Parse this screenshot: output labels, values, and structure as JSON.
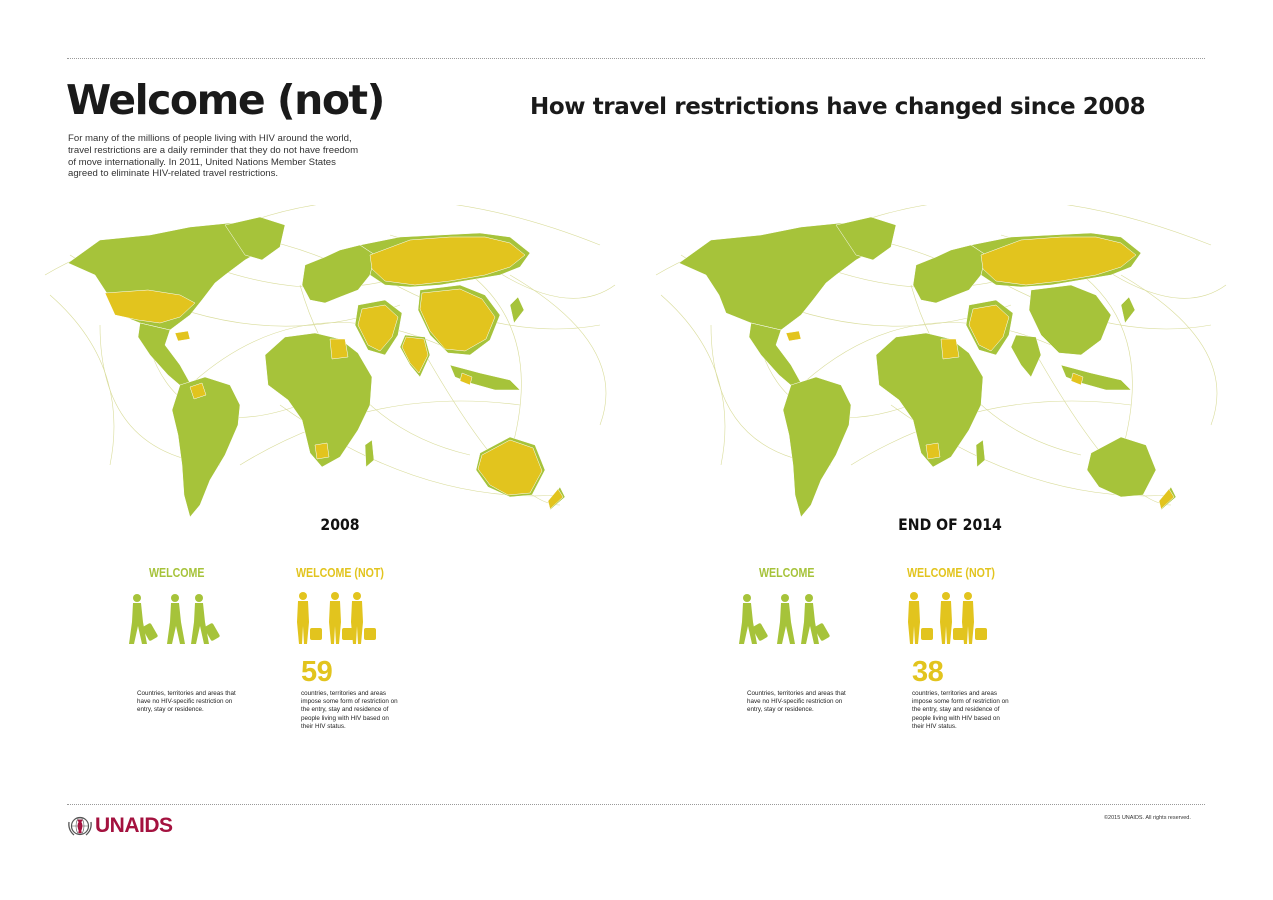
{
  "title": "Welcome (not)",
  "subtitle": "How travel restrictions have changed since 2008",
  "intro": "For many of the millions of people living with HIV around the world, travel restrictions are a daily reminder that they do not have freedom of move internationally. In 2011, United Nations Member States agreed to eliminate HIV-related travel restrictions.",
  "colors": {
    "welcome": "#a6c33a",
    "welcome_not": "#e2c41e",
    "arcs": "#d9dc9a"
  },
  "panels": [
    {
      "label": "2008",
      "welcome_head": "WELCOME",
      "welcome_not_head": "WELCOME (NOT)",
      "count": "59",
      "welcome_desc": "Countries, territories and areas that have no HIV-specific restriction on entry, stay or residence.",
      "welcome_not_desc": "countries, territories and areas impose some form of restriction on the entry, stay and residence of people living with HIV based on their HIV status.",
      "restricted_regions": [
        "usa",
        "russia",
        "china",
        "middle-east",
        "australia",
        "egypt",
        "india",
        "southeast-asia",
        "colombia",
        "caribbean",
        "southern-africa",
        "new-zealand"
      ]
    },
    {
      "label": "END OF 2014",
      "welcome_head": "WELCOME",
      "welcome_not_head": "WELCOME (NOT)",
      "count": "38",
      "welcome_desc": "Countries, territories and areas that have no HIV-specific restriction on entry, stay or residence.",
      "welcome_not_desc": "countries, territories and areas impose some form of restriction on the entry, stay and residence of people living with HIV based on their HIV status.",
      "restricted_regions": [
        "russia",
        "middle-east",
        "egypt",
        "southeast-asia",
        "caribbean",
        "southern-africa",
        "new-zealand"
      ]
    }
  ],
  "logo": "UNAIDS",
  "logo_icon": "un-emblem-icon",
  "copyright": "©2015 UNAIDS. All rights reserved."
}
